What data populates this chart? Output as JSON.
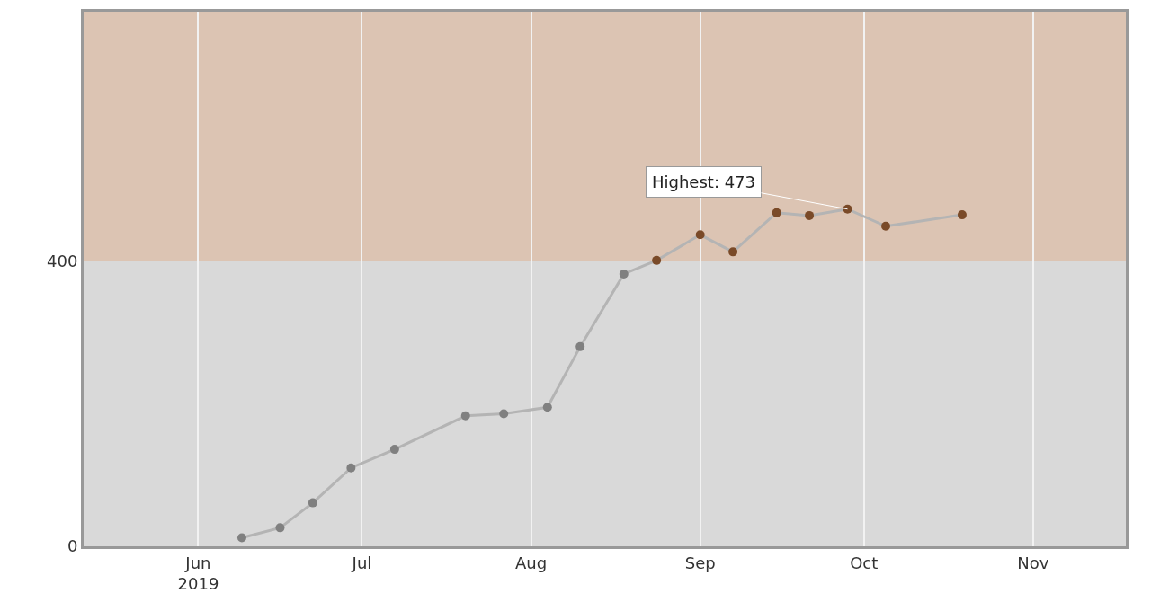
{
  "chart_data": {
    "type": "line",
    "x": [
      "2019-06-09",
      "2019-06-16",
      "2019-06-22",
      "2019-06-29",
      "2019-07-07",
      "2019-07-20",
      "2019-07-27",
      "2019-08-04",
      "2019-08-10",
      "2019-08-18",
      "2019-08-24",
      "2019-09-01",
      "2019-09-07",
      "2019-09-15",
      "2019-09-21",
      "2019-09-28",
      "2019-10-05",
      "2019-10-19"
    ],
    "series": [
      {
        "color": "#b4b4b4",
        "values": [
          12,
          26,
          61,
          110,
          136,
          183,
          186,
          195,
          280,
          382,
          401,
          437,
          413,
          468,
          464,
          473,
          449,
          465
        ],
        "colors": [
          "#808080",
          "#808080",
          "#808080",
          "#808080",
          "#808080",
          "#808080",
          "#808080",
          "#808080",
          "#808080",
          "#808080",
          "#7a4a28",
          "#7a4a28",
          "#7a4a28",
          "#7a4a28",
          "#7a4a28",
          "#7a4a28",
          "#7a4a28",
          "#7a4a28"
        ]
      }
    ],
    "xlim": [
      "2019-05-11",
      "2019-11-18"
    ],
    "xticks": [
      {
        "value": "2019-06-01",
        "label": "Jun\n2019"
      },
      {
        "value": "2019-07-01",
        "label": "Jul"
      },
      {
        "value": "2019-08-01",
        "label": "Aug"
      },
      {
        "value": "2019-09-01",
        "label": "Sep"
      },
      {
        "value": "2019-10-01",
        "label": "Oct"
      },
      {
        "value": "2019-11-01",
        "label": "Nov"
      }
    ],
    "ylim": [
      0,
      750
    ],
    "yticks": [
      0,
      400
    ],
    "bands": [
      {
        "axis": "y",
        "from": 0,
        "to": 400,
        "color": "#d9d9d9"
      },
      {
        "axis": "y",
        "from": 400,
        "to": 750,
        "color": "#dcc4b3"
      }
    ],
    "annotations": [
      {
        "text": "Highest: 473",
        "x": "2019-09-28",
        "y": 473
      }
    ],
    "grid": "x",
    "marker": "circle",
    "line_style": "solid"
  }
}
